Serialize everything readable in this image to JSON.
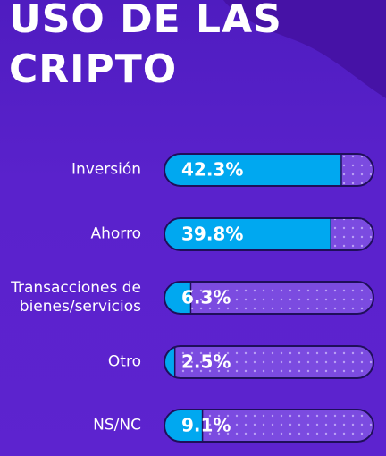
{
  "chart_data": {
    "type": "bar",
    "orientation": "horizontal",
    "title": "USO DE LAS CRIPTO",
    "categories": [
      "Inversión",
      "Ahorro",
      "Transacciones de bienes/servicios",
      "Otro",
      "NS/NC"
    ],
    "values": [
      42.3,
      39.8,
      6.3,
      2.5,
      9.1
    ],
    "value_labels": [
      "42.3%",
      "39.8%",
      "6.3%",
      "2.5%",
      "9.1%"
    ],
    "xlim": [
      0,
      50
    ],
    "color": "#00a8f0",
    "track_color": "#7b4be0"
  }
}
